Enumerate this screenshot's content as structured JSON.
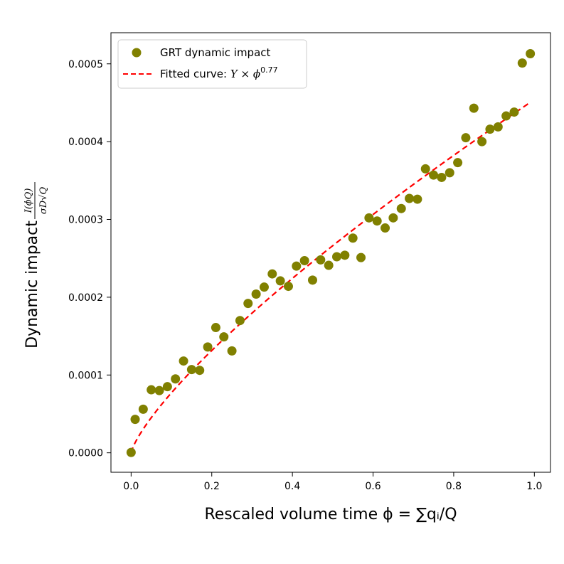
{
  "chart_data": {
    "type": "scatter",
    "xlabel": "Rescaled volume time ϕ = ∑qᵢ/Q",
    "ylabel_text": "Dynamic impact",
    "ylabel_fraction_numerator": "I(ϕQ)",
    "ylabel_fraction_denominator": "σD√Q",
    "xlim": [
      -0.05,
      1.04
    ],
    "ylim": [
      -2.5e-05,
      0.00054
    ],
    "x_ticks": [
      0.0,
      0.2,
      0.4,
      0.6,
      0.8,
      1.0
    ],
    "x_tick_labels": [
      "0.0",
      "0.2",
      "0.4",
      "0.6",
      "0.8",
      "1.0"
    ],
    "y_ticks": [
      0.0,
      0.0001,
      0.0002,
      0.0003,
      0.0004,
      0.0005
    ],
    "y_tick_labels": [
      "0.0000",
      "0.0001",
      "0.0002",
      "0.0003",
      "0.0004",
      "0.0005"
    ],
    "legend_position": "top-left",
    "series": [
      {
        "name": "GRT dynamic impact",
        "kind": "scatter",
        "color": "#808000",
        "x": [
          0.0,
          0.01,
          0.03,
          0.05,
          0.07,
          0.09,
          0.11,
          0.13,
          0.15,
          0.17,
          0.19,
          0.21,
          0.23,
          0.25,
          0.27,
          0.29,
          0.31,
          0.33,
          0.35,
          0.37,
          0.39,
          0.41,
          0.43,
          0.45,
          0.47,
          0.49,
          0.51,
          0.53,
          0.55,
          0.57,
          0.59,
          0.61,
          0.63,
          0.65,
          0.67,
          0.69,
          0.71,
          0.73,
          0.75,
          0.77,
          0.79,
          0.81,
          0.83,
          0.85,
          0.87,
          0.89,
          0.91,
          0.93,
          0.95,
          0.97,
          0.99
        ],
        "y": [
          5e-07,
          4.3e-05,
          5.6e-05,
          8.1e-05,
          8e-05,
          8.5e-05,
          9.5e-05,
          0.000118,
          0.000107,
          0.000106,
          0.000136,
          0.000161,
          0.000149,
          0.000131,
          0.00017,
          0.000192,
          0.000204,
          0.000213,
          0.00023,
          0.000221,
          0.000214,
          0.00024,
          0.000247,
          0.000222,
          0.000248,
          0.000241,
          0.000252,
          0.000254,
          0.000276,
          0.000251,
          0.000302,
          0.000298,
          0.000289,
          0.000302,
          0.000314,
          0.000327,
          0.000326,
          0.000365,
          0.000357,
          0.000354,
          0.00036,
          0.000373,
          0.000405,
          0.000443,
          0.0004,
          0.000416,
          0.000419,
          0.000433,
          0.000438,
          0.000501,
          0.000513
        ]
      },
      {
        "name": "Fitted curve: Y × ϕ^0.77",
        "kind": "line",
        "style": "dashed",
        "color": "#ff0000",
        "function": "Y * x^0.77",
        "Y": 0.000454,
        "exponent": 0.77,
        "x_range": [
          0.0,
          0.99
        ]
      }
    ],
    "legend": [
      {
        "label": "GRT dynamic impact",
        "marker": "circle"
      },
      {
        "label_prefix": "Fitted curve: ",
        "label_math": "Y × ϕ",
        "label_sup": "0.77",
        "marker": "dashed-line"
      }
    ]
  }
}
